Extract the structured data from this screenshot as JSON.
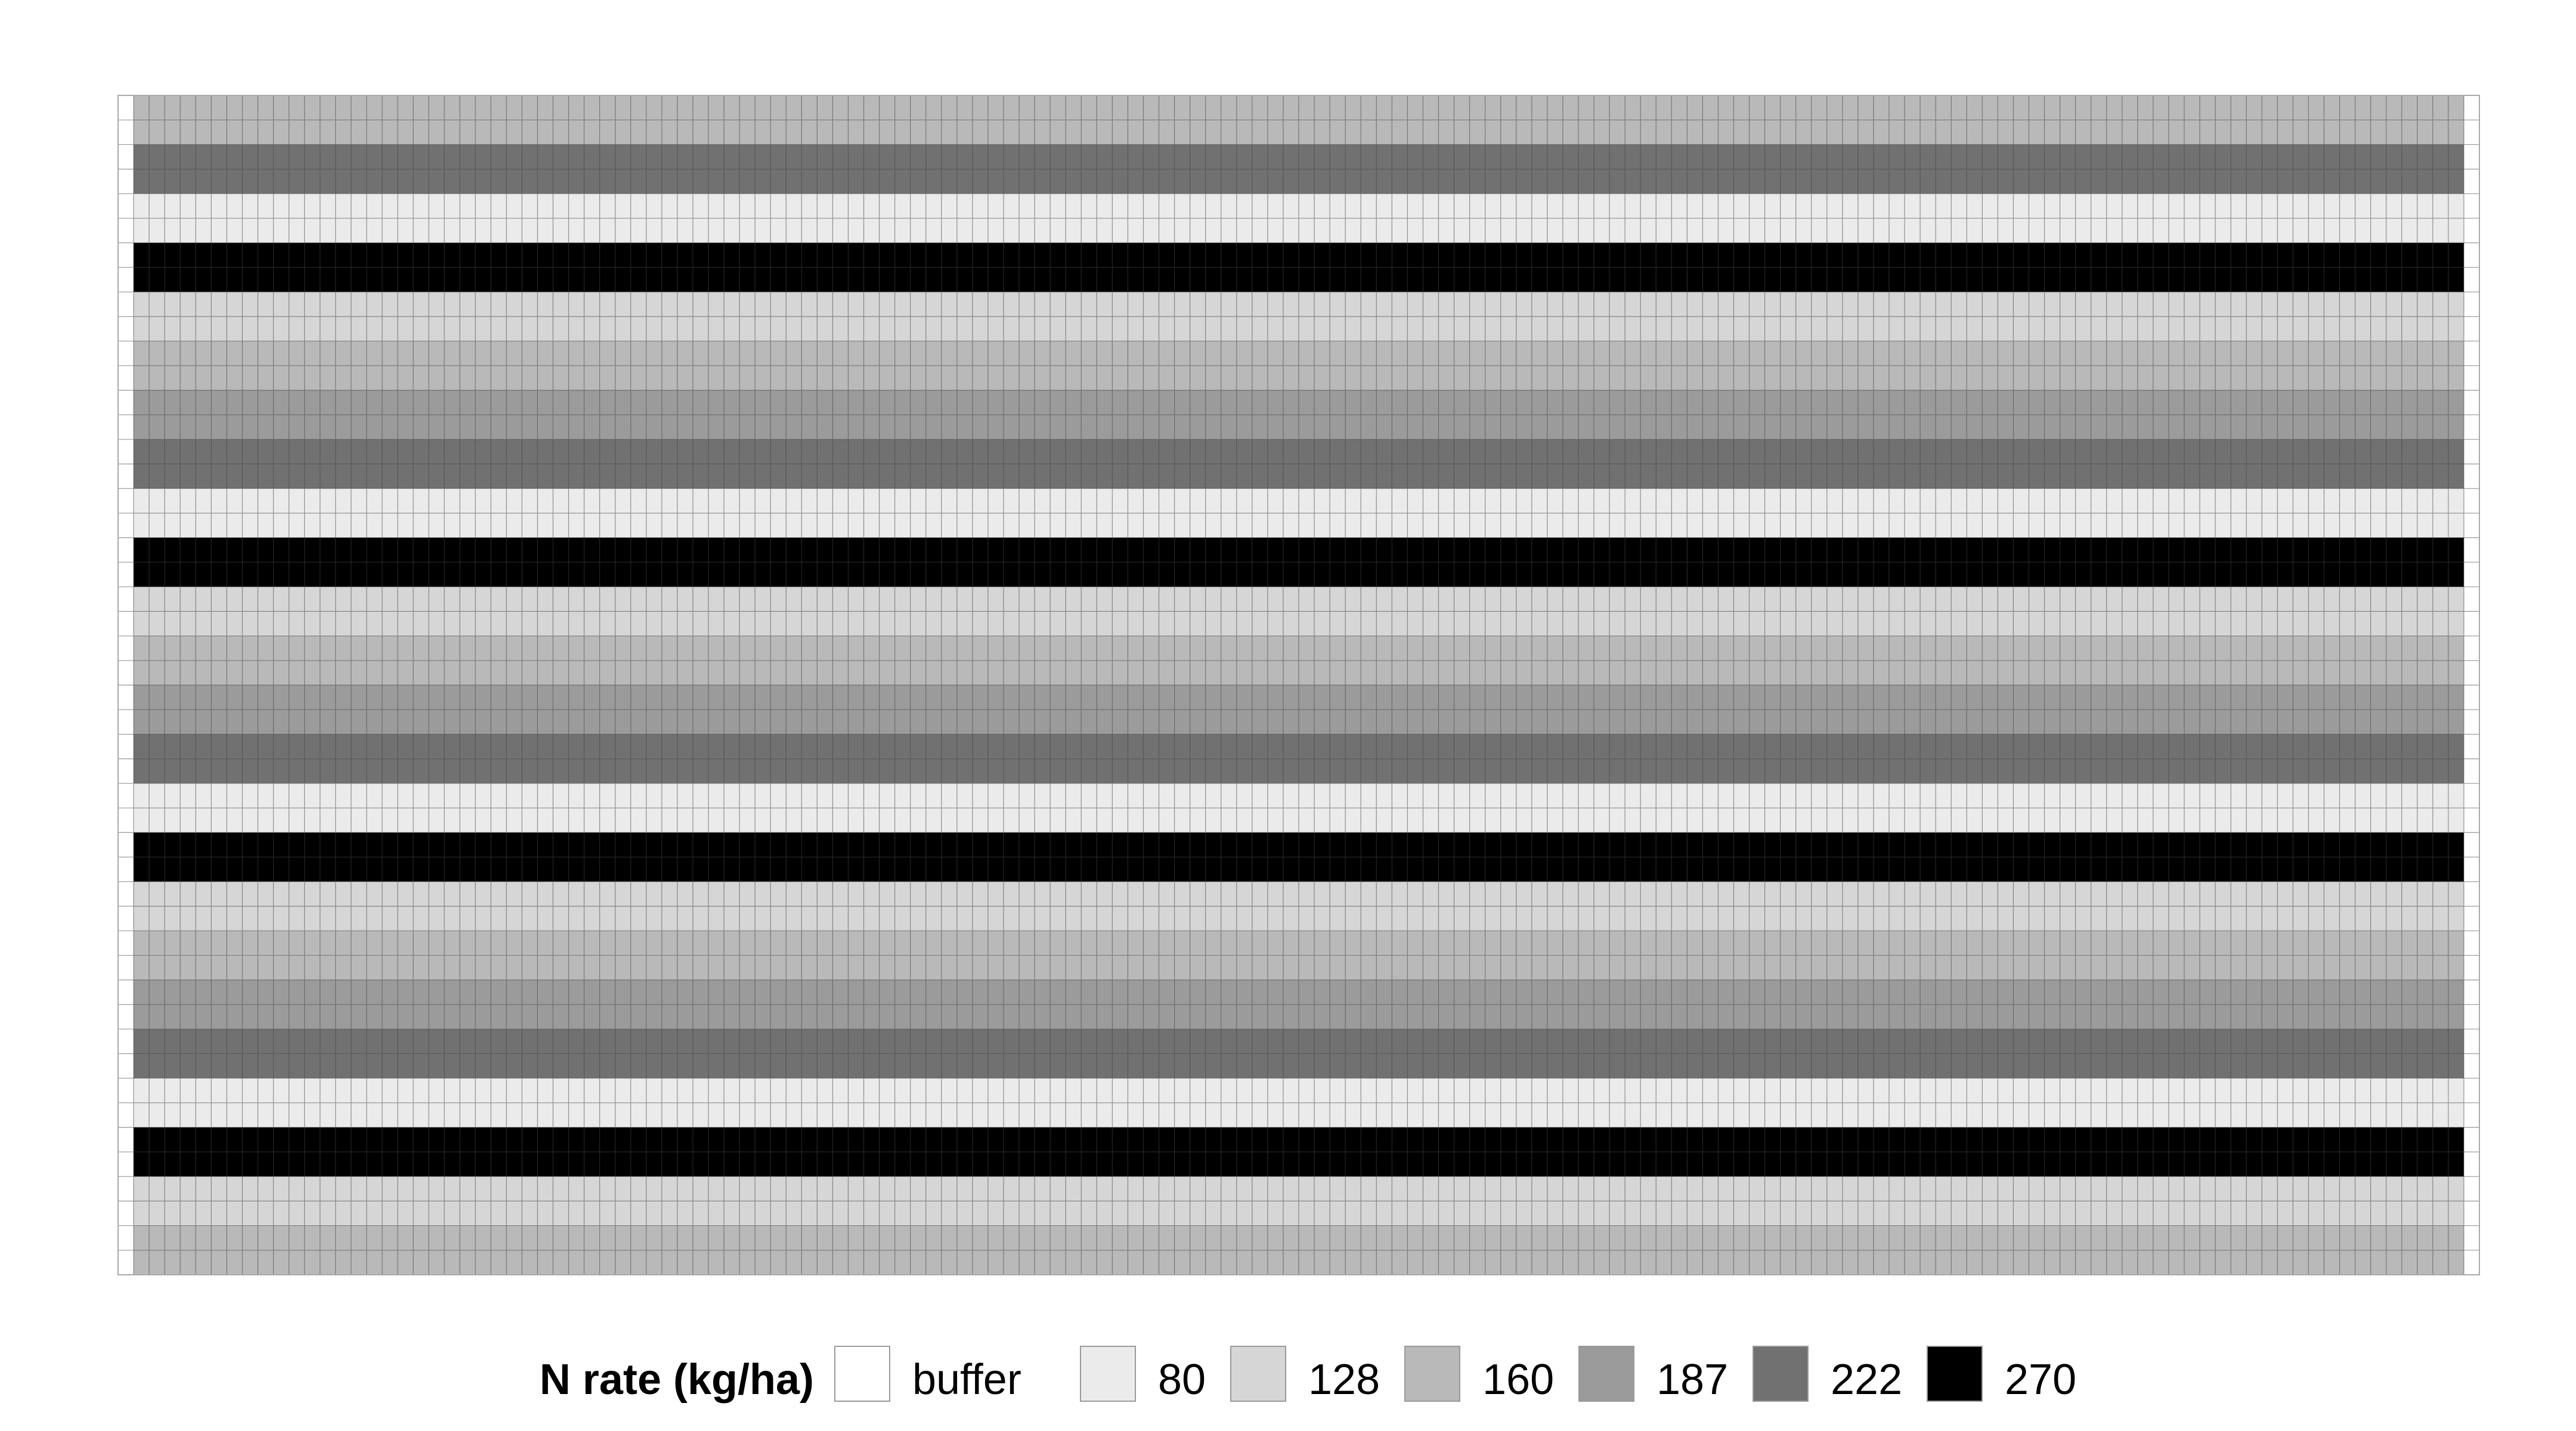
{
  "chart_data": {
    "type": "heatmap",
    "title": "",
    "xlabel": "",
    "ylabel": "",
    "grid": true,
    "n_columns": 150,
    "buffer_columns": {
      "left": 1,
      "right": 1
    },
    "value_field": "N rate (kg/ha)",
    "row_categories": [
      "160",
      "160",
      "222",
      "222",
      "80",
      "80",
      "270",
      "270",
      "128",
      "128",
      "160",
      "160",
      "187",
      "187",
      "222",
      "222",
      "80",
      "80",
      "270",
      "270",
      "128",
      "128",
      "160",
      "160",
      "187",
      "187",
      "222",
      "222",
      "80",
      "80",
      "270",
      "270",
      "128",
      "128",
      "160",
      "160",
      "187",
      "187",
      "222",
      "222",
      "80",
      "80",
      "270",
      "270",
      "128",
      "128",
      "160",
      "160"
    ],
    "legend": {
      "title": "N rate (kg/ha)",
      "position": "bottom",
      "entries": [
        {
          "label": "buffer",
          "color": "#ffffff"
        },
        {
          "label": "80",
          "color": "#ebebeb"
        },
        {
          "label": "128",
          "color": "#d6d6d6"
        },
        {
          "label": "160",
          "color": "#b9b9b9"
        },
        {
          "label": "187",
          "color": "#9b9b9b"
        },
        {
          "label": "222",
          "color": "#717171"
        },
        {
          "label": "270",
          "color": "#000000"
        }
      ]
    },
    "cell_border_color": "#444444",
    "buffer_border_color": "#aaaaaa"
  }
}
